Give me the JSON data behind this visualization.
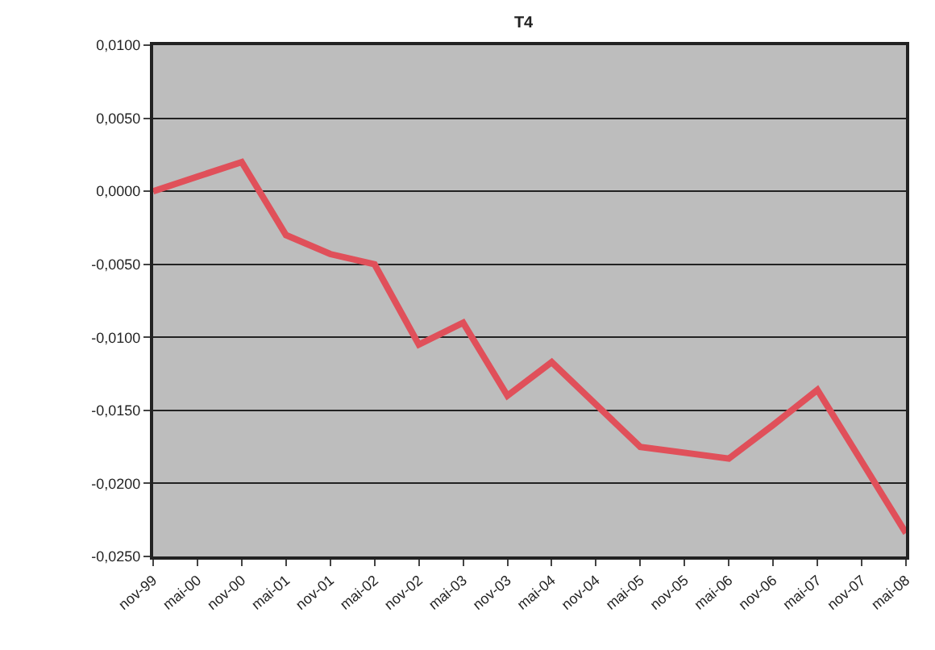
{
  "chart_data": {
    "type": "line",
    "title": "T4",
    "categories": [
      "nov-99",
      "mai-00",
      "nov-00",
      "mai-01",
      "nov-01",
      "mai-02",
      "nov-02",
      "mai-03",
      "nov-03",
      "mai-04",
      "nov-04",
      "mai-05",
      "nov-05",
      "mai-06",
      "nov-06",
      "mai-07",
      "nov-07",
      "mai-08"
    ],
    "series": [
      {
        "color": "#e0505a",
        "values": [
          0.0,
          0.001,
          0.002,
          -0.003,
          -0.0043,
          -0.005,
          -0.0105,
          -0.009,
          -0.014,
          -0.0117,
          -0.0146,
          -0.0175,
          -0.0179,
          -0.0183,
          -0.016,
          -0.0136,
          -0.0185,
          -0.0234
        ]
      }
    ],
    "ylim": [
      -0.025,
      0.01
    ],
    "yticks": [
      {
        "value": -0.025,
        "label": "-0,0250"
      },
      {
        "value": -0.02,
        "label": "-0,0200"
      },
      {
        "value": -0.015,
        "label": "-0,0150"
      },
      {
        "value": -0.01,
        "label": "-0,0100"
      },
      {
        "value": -0.005,
        "label": "-0,0050"
      },
      {
        "value": 0,
        "label": "0,0000"
      },
      {
        "value": 0.005,
        "label": "0,0050"
      },
      {
        "value": 0.01,
        "label": "0,0100"
      }
    ],
    "grid": "y",
    "marker": "none",
    "line_style": "solid"
  }
}
